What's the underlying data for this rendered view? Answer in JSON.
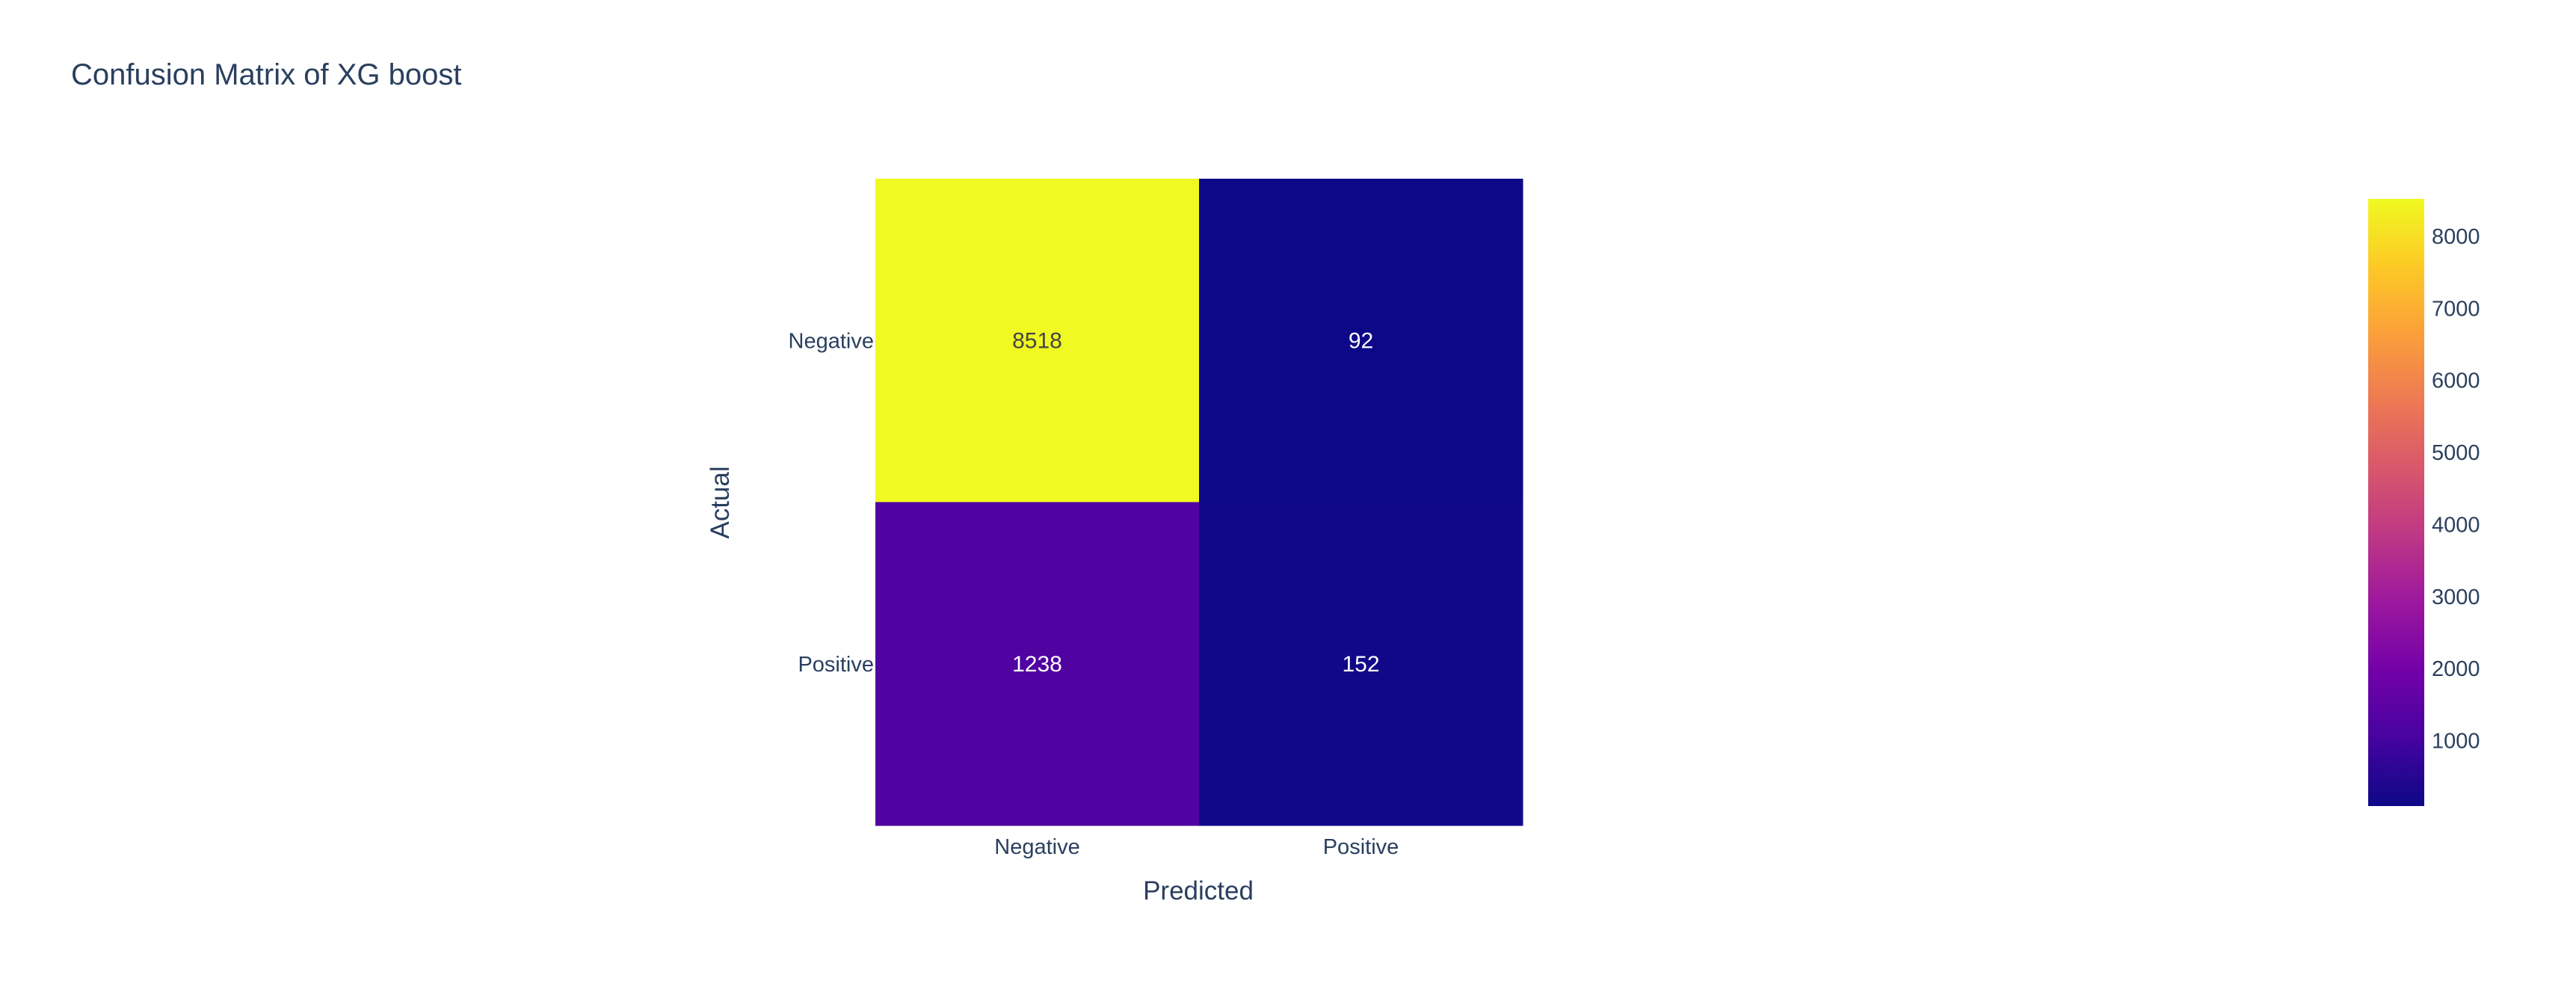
{
  "chart_data": {
    "type": "heatmap",
    "title": "Confusion Matrix of XG boost",
    "xlabel": "Predicted",
    "ylabel": "Actual",
    "x_categories": [
      "Negative",
      "Positive"
    ],
    "y_categories": [
      "Negative",
      "Positive"
    ],
    "z": [
      [
        8518,
        92
      ],
      [
        1238,
        152
      ]
    ],
    "zrange": [
      92,
      8518
    ],
    "colorscale": "Plasma",
    "colorbar": {
      "ticks": [
        1000,
        2000,
        3000,
        4000,
        5000,
        6000,
        7000,
        8000
      ],
      "tick_labels": [
        "1000",
        "2000",
        "3000",
        "4000",
        "5000",
        "6000",
        "7000",
        "8000"
      ]
    }
  }
}
